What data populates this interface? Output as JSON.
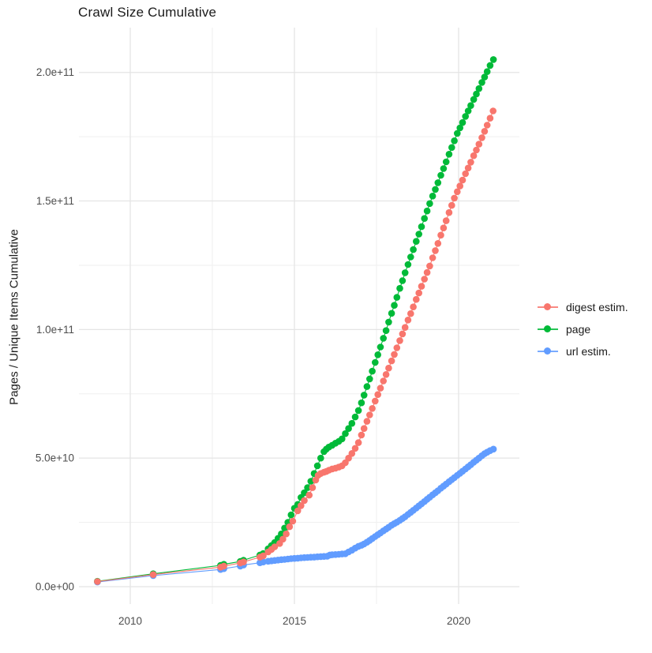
{
  "title": "Crawl Size Cumulative",
  "y_axis": {
    "label": "Pages / Unique Items Cumulative",
    "tick_color": "#4d4d4d",
    "ticks": [
      {
        "value_e9": 0,
        "label": "0.0e+00"
      },
      {
        "value_e9": 50,
        "label": "5.0e+10"
      },
      {
        "value_e9": 100,
        "label": "1.0e+11"
      },
      {
        "value_e9": 150,
        "label": "1.5e+11"
      },
      {
        "value_e9": 200,
        "label": "2.0e+11"
      }
    ],
    "minor_gridlines_e9": [
      25,
      75,
      125,
      175
    ]
  },
  "x_axis": {
    "ticks": [
      {
        "year": 2010,
        "label": "2010"
      },
      {
        "year": 2015,
        "label": "2015"
      },
      {
        "year": 2020,
        "label": "2020"
      }
    ],
    "minor_gridlines_years": [
      2012.5,
      2017.5
    ]
  },
  "grid": {
    "major_color": "#e4e4e4",
    "minor_color": "#efefef"
  },
  "chart_data": {
    "type": "scatter",
    "title": "Crawl Size Cumulative",
    "xlabel": "",
    "ylabel": "Pages / Unique Items Cumulative",
    "x_range_years": [
      2008.4,
      2021.8
    ],
    "y_range": [
      0,
      217000000000.0
    ],
    "y_unit_note": "point values below are in billions (multiply by 1e9)",
    "legend_position": "right",
    "grid": "major+minor, light gray on white",
    "marker": "filled circle with thin connecting line",
    "draw_order_series_indices": [
      2,
      1,
      0
    ],
    "series": [
      {
        "name": "digest estim.",
        "color": "#F8766D",
        "points_year_value_e9": [
          [
            2009.0,
            2.0
          ],
          [
            2010.7,
            4.7
          ],
          [
            2012.75,
            7.6
          ],
          [
            2012.85,
            8.0
          ],
          [
            2013.35,
            9.2
          ],
          [
            2013.45,
            9.6
          ],
          [
            2013.95,
            11.5
          ],
          [
            2014.05,
            12.0
          ],
          [
            2014.2,
            13.5
          ],
          [
            2014.3,
            14.5
          ],
          [
            2014.4,
            15.5
          ],
          [
            2014.55,
            16.8
          ],
          [
            2014.65,
            18.5
          ],
          [
            2014.75,
            20.5
          ],
          [
            2014.85,
            23.3
          ],
          [
            2014.95,
            25.5
          ],
          [
            2015.1,
            29.5
          ],
          [
            2015.2,
            31.5
          ],
          [
            2015.3,
            33.5
          ],
          [
            2015.45,
            35.6
          ],
          [
            2015.55,
            38.5
          ],
          [
            2015.65,
            41.5
          ],
          [
            2015.72,
            43.3
          ],
          [
            2015.8,
            44.0
          ],
          [
            2015.9,
            44.5
          ],
          [
            2015.97,
            44.8
          ],
          [
            2016.05,
            45.3
          ],
          [
            2016.15,
            45.8
          ],
          [
            2016.25,
            46.1
          ],
          [
            2016.35,
            46.5
          ],
          [
            2016.45,
            47.0
          ],
          [
            2016.55,
            48.2
          ],
          [
            2016.65,
            50.0
          ],
          [
            2016.75,
            51.8
          ],
          [
            2016.85,
            53.8
          ],
          [
            2016.95,
            56.0
          ],
          [
            2017.04,
            59.0
          ],
          [
            2017.12,
            61.5
          ],
          [
            2017.21,
            64.3
          ],
          [
            2017.29,
            66.8
          ],
          [
            2017.37,
            69.3
          ],
          [
            2017.46,
            72.2
          ],
          [
            2017.54,
            74.7
          ],
          [
            2017.62,
            77.2
          ],
          [
            2017.71,
            80.0
          ],
          [
            2017.79,
            82.5
          ],
          [
            2017.87,
            85.0
          ],
          [
            2017.96,
            87.8
          ],
          [
            2018.04,
            90.3
          ],
          [
            2018.12,
            92.9
          ],
          [
            2018.21,
            95.7
          ],
          [
            2018.29,
            98.3
          ],
          [
            2018.37,
            100.8
          ],
          [
            2018.46,
            103.7
          ],
          [
            2018.54,
            106.2
          ],
          [
            2018.62,
            108.8
          ],
          [
            2018.71,
            111.7
          ],
          [
            2018.79,
            114.2
          ],
          [
            2018.87,
            116.8
          ],
          [
            2018.96,
            119.6
          ],
          [
            2019.04,
            122.2
          ],
          [
            2019.12,
            124.7
          ],
          [
            2019.21,
            127.9
          ],
          [
            2019.29,
            130.7
          ],
          [
            2019.37,
            133.5
          ],
          [
            2019.46,
            136.7
          ],
          [
            2019.54,
            139.5
          ],
          [
            2019.62,
            142.3
          ],
          [
            2019.71,
            145.5
          ],
          [
            2019.79,
            148.3
          ],
          [
            2019.87,
            151.1
          ],
          [
            2019.96,
            153.6
          ],
          [
            2020.04,
            155.8
          ],
          [
            2020.12,
            158.1
          ],
          [
            2020.21,
            160.6
          ],
          [
            2020.29,
            162.8
          ],
          [
            2020.37,
            165.1
          ],
          [
            2020.46,
            167.6
          ],
          [
            2020.54,
            169.8
          ],
          [
            2020.62,
            172.1
          ],
          [
            2020.71,
            174.6
          ],
          [
            2020.79,
            177.1
          ],
          [
            2020.87,
            179.5
          ],
          [
            2020.96,
            182.2
          ],
          [
            2021.05,
            185.0
          ]
        ]
      },
      {
        "name": "page",
        "color": "#00BA38",
        "points_year_value_e9": [
          [
            2009.0,
            2.1
          ],
          [
            2010.7,
            5.0
          ],
          [
            2012.75,
            8.3
          ],
          [
            2012.85,
            8.7
          ],
          [
            2013.35,
            9.8
          ],
          [
            2013.45,
            10.3
          ],
          [
            2013.95,
            12.3
          ],
          [
            2014.05,
            12.9
          ],
          [
            2014.2,
            14.7
          ],
          [
            2014.3,
            16.0
          ],
          [
            2014.4,
            17.2
          ],
          [
            2014.5,
            18.8
          ],
          [
            2014.6,
            20.5
          ],
          [
            2014.7,
            22.8
          ],
          [
            2014.8,
            25.0
          ],
          [
            2014.9,
            27.9
          ],
          [
            2015.0,
            30.5
          ],
          [
            2015.1,
            32.0
          ],
          [
            2015.2,
            34.7
          ],
          [
            2015.3,
            36.5
          ],
          [
            2015.4,
            38.5
          ],
          [
            2015.5,
            41.0
          ],
          [
            2015.6,
            44.0
          ],
          [
            2015.7,
            47.0
          ],
          [
            2015.8,
            50.0
          ],
          [
            2015.9,
            52.5
          ],
          [
            2015.97,
            53.5
          ],
          [
            2016.05,
            54.3
          ],
          [
            2016.15,
            55.0
          ],
          [
            2016.25,
            55.8
          ],
          [
            2016.35,
            56.5
          ],
          [
            2016.45,
            57.5
          ],
          [
            2016.55,
            59.5
          ],
          [
            2016.65,
            61.5
          ],
          [
            2016.75,
            63.5
          ],
          [
            2016.85,
            66.0
          ],
          [
            2016.95,
            68.5
          ],
          [
            2017.04,
            71.5
          ],
          [
            2017.12,
            74.5
          ],
          [
            2017.21,
            77.8
          ],
          [
            2017.29,
            80.8
          ],
          [
            2017.37,
            83.8
          ],
          [
            2017.46,
            87.2
          ],
          [
            2017.54,
            90.2
          ],
          [
            2017.62,
            93.2
          ],
          [
            2017.71,
            96.6
          ],
          [
            2017.79,
            99.6
          ],
          [
            2017.87,
            102.9
          ],
          [
            2017.96,
            106.3
          ],
          [
            2018.04,
            109.4
          ],
          [
            2018.12,
            112.5
          ],
          [
            2018.21,
            116.0
          ],
          [
            2018.29,
            119.0
          ],
          [
            2018.37,
            122.1
          ],
          [
            2018.46,
            125.3
          ],
          [
            2018.54,
            128.2
          ],
          [
            2018.62,
            131.1
          ],
          [
            2018.71,
            134.3
          ],
          [
            2018.79,
            137.1
          ],
          [
            2018.87,
            140.0
          ],
          [
            2018.96,
            143.2
          ],
          [
            2019.04,
            146.1
          ],
          [
            2019.12,
            149.0
          ],
          [
            2019.21,
            151.9
          ],
          [
            2019.29,
            154.5
          ],
          [
            2019.37,
            157.1
          ],
          [
            2019.46,
            160.0
          ],
          [
            2019.54,
            162.6
          ],
          [
            2019.62,
            165.2
          ],
          [
            2019.71,
            168.2
          ],
          [
            2019.79,
            170.8
          ],
          [
            2019.87,
            173.4
          ],
          [
            2019.96,
            176.3
          ],
          [
            2020.04,
            178.4
          ],
          [
            2020.12,
            180.5
          ],
          [
            2020.21,
            182.9
          ],
          [
            2020.29,
            185.0
          ],
          [
            2020.37,
            187.1
          ],
          [
            2020.46,
            189.5
          ],
          [
            2020.54,
            191.6
          ],
          [
            2020.62,
            193.7
          ],
          [
            2020.71,
            196.1
          ],
          [
            2020.79,
            198.2
          ],
          [
            2020.87,
            200.3
          ],
          [
            2020.96,
            202.7
          ],
          [
            2021.06,
            205.0
          ]
        ]
      },
      {
        "name": "url estim.",
        "color": "#619CFF",
        "points_year_value_e9": [
          [
            2009.0,
            1.8
          ],
          [
            2010.7,
            4.3
          ],
          [
            2012.75,
            6.7
          ],
          [
            2012.85,
            7.0
          ],
          [
            2013.35,
            8.0
          ],
          [
            2013.45,
            8.4
          ],
          [
            2013.95,
            9.3
          ],
          [
            2014.05,
            9.6
          ],
          [
            2014.2,
            9.9
          ],
          [
            2014.3,
            10.05
          ],
          [
            2014.4,
            10.2
          ],
          [
            2014.5,
            10.35
          ],
          [
            2014.6,
            10.5
          ],
          [
            2014.7,
            10.6
          ],
          [
            2014.8,
            10.75
          ],
          [
            2014.9,
            10.9
          ],
          [
            2015.0,
            11.0
          ],
          [
            2015.1,
            11.1
          ],
          [
            2015.2,
            11.2
          ],
          [
            2015.3,
            11.3
          ],
          [
            2015.4,
            11.35
          ],
          [
            2015.5,
            11.45
          ],
          [
            2015.6,
            11.5
          ],
          [
            2015.7,
            11.6
          ],
          [
            2015.8,
            11.7
          ],
          [
            2015.9,
            11.75
          ],
          [
            2016.0,
            11.85
          ],
          [
            2016.08,
            12.3
          ],
          [
            2016.15,
            12.4
          ],
          [
            2016.25,
            12.5
          ],
          [
            2016.35,
            12.6
          ],
          [
            2016.45,
            12.7
          ],
          [
            2016.55,
            12.8
          ],
          [
            2016.65,
            13.5
          ],
          [
            2016.75,
            14.2
          ],
          [
            2016.85,
            15.0
          ],
          [
            2016.95,
            15.7
          ],
          [
            2017.04,
            16.1
          ],
          [
            2017.12,
            16.6
          ],
          [
            2017.21,
            17.3
          ],
          [
            2017.29,
            18.0
          ],
          [
            2017.37,
            18.7
          ],
          [
            2017.46,
            19.5
          ],
          [
            2017.54,
            20.2
          ],
          [
            2017.62,
            20.9
          ],
          [
            2017.71,
            21.7
          ],
          [
            2017.79,
            22.4
          ],
          [
            2017.87,
            23.1
          ],
          [
            2017.96,
            23.9
          ],
          [
            2018.04,
            24.5
          ],
          [
            2018.12,
            25.1
          ],
          [
            2018.21,
            25.8
          ],
          [
            2018.29,
            26.5
          ],
          [
            2018.37,
            27.2
          ],
          [
            2018.46,
            28.1
          ],
          [
            2018.54,
            28.9
          ],
          [
            2018.62,
            29.7
          ],
          [
            2018.71,
            30.6
          ],
          [
            2018.79,
            31.4
          ],
          [
            2018.87,
            32.2
          ],
          [
            2018.96,
            33.1
          ],
          [
            2019.04,
            34.0
          ],
          [
            2019.12,
            34.8
          ],
          [
            2019.21,
            35.7
          ],
          [
            2019.29,
            36.5
          ],
          [
            2019.37,
            37.3
          ],
          [
            2019.46,
            38.3
          ],
          [
            2019.54,
            39.1
          ],
          [
            2019.62,
            39.9
          ],
          [
            2019.71,
            40.8
          ],
          [
            2019.79,
            41.6
          ],
          [
            2019.87,
            42.4
          ],
          [
            2019.96,
            43.3
          ],
          [
            2020.04,
            44.1
          ],
          [
            2020.12,
            44.9
          ],
          [
            2020.21,
            45.8
          ],
          [
            2020.29,
            46.6
          ],
          [
            2020.37,
            47.4
          ],
          [
            2020.46,
            48.4
          ],
          [
            2020.54,
            49.2
          ],
          [
            2020.62,
            50.0
          ],
          [
            2020.71,
            50.9
          ],
          [
            2020.79,
            51.7
          ],
          [
            2020.87,
            52.3
          ],
          [
            2020.96,
            52.9
          ],
          [
            2021.06,
            53.5
          ]
        ]
      }
    ]
  }
}
